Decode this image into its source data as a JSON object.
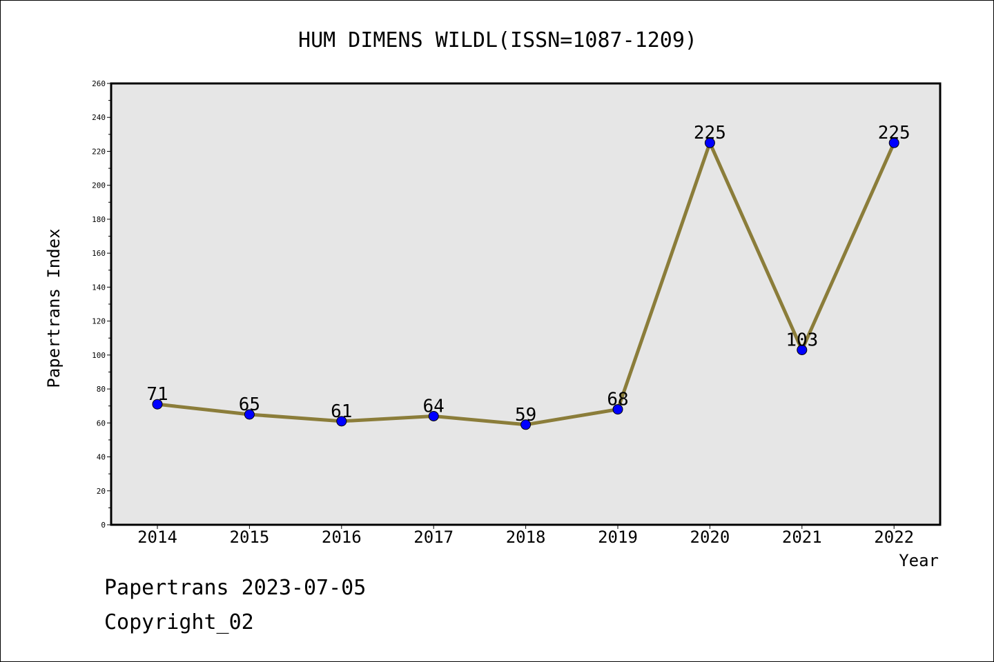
{
  "chart_data": {
    "type": "line",
    "title": "HUM DIMENS WILDL(ISSN=1087-1209)",
    "xlabel": "Year",
    "ylabel": "Papertrans Index",
    "categories": [
      "2014",
      "2015",
      "2016",
      "2017",
      "2018",
      "2019",
      "2020",
      "2021",
      "2022"
    ],
    "series": [
      {
        "values": [
          71,
          65,
          61,
          64,
          59,
          68,
          225,
          103,
          225
        ],
        "line_color": "#8b7d3a",
        "marker_color": "#0000ff"
      }
    ],
    "ylim": [
      0,
      260
    ],
    "yticks": [
      0,
      20,
      40,
      60,
      80,
      100,
      120,
      140,
      160,
      180,
      200,
      220,
      240,
      260
    ],
    "data_labels": [
      "71",
      "65",
      "61",
      "64",
      "59",
      "68",
      "225",
      "103",
      "225"
    ],
    "grid": false,
    "plot_background": "#e6e6e6"
  },
  "footer": {
    "line1": "Papertrans 2023-07-05",
    "line2": "Copyright_02"
  }
}
